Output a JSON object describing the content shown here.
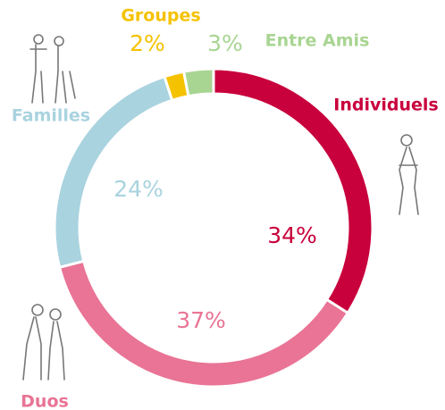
{
  "chart_data": {
    "type": "donut",
    "categories": [
      "Individuels",
      "Duos",
      "Familles",
      "Groupes",
      "Entre Amis"
    ],
    "values": [
      34,
      37,
      24,
      2,
      3
    ],
    "value_labels": [
      "34%",
      "37%",
      "24%",
      "2%",
      "3%"
    ],
    "colors": [
      "#c8003c",
      "#e97495",
      "#a9d3df",
      "#f5c200",
      "#a9d592"
    ]
  }
}
